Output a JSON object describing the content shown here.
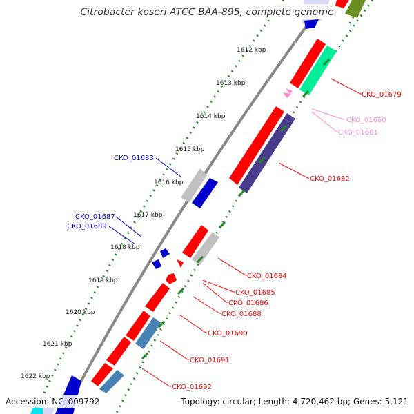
{
  "title": "Citrobacter koseri ATCC BAA-895, complete genome",
  "accession": "Accession: NC_009792",
  "topology": "Topology: circular; Length: 4,720,462 bp; Genes: 5,121",
  "ticks": [
    "1612 kbp",
    "1613 kbp",
    "1614 kbp",
    "1615 kbp",
    "1616 kbp",
    "1617 kbp",
    "1618 kbp",
    "1619 kbp",
    "1620 kbp",
    "1621 kbp",
    "1622 kbp"
  ],
  "colors": {
    "red": "#ff0000",
    "blue": "#0000cc",
    "pink": "#ff88cc",
    "backbone": "#888888",
    "dots": "#228822",
    "spring_green": "#00ee99",
    "slate": "#4a3c8c",
    "steel": "#4682b4",
    "gray": "#c0c0c0",
    "cyan": "#00e5ee",
    "olive": "#6b8e23"
  },
  "labels": {
    "cko_01679": "CKO_01679",
    "cko_01680": "CKO_01680",
    "cko_01681": "CKO_01681",
    "cko_01682": "CKO_01682",
    "cko_01683": "CKO_01683",
    "cko_01684": "CKO_01684",
    "cko_01685": "CKO_01685",
    "cko_01686": "CKO_01686",
    "cko_01687": "CKO_01687",
    "cko_01688": "CKO_01688",
    "cko_01689": "CKO_01689",
    "cko_01690": "CKO_01690",
    "cko_01691": "CKO_01691",
    "cko_01692": "CKO_01692"
  }
}
